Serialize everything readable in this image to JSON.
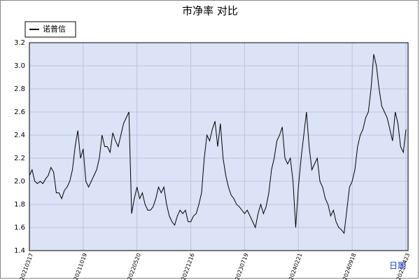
{
  "chart_data": {
    "type": "line",
    "title": "市净率  对比",
    "x_label": "日期",
    "categories": [
      "20210317",
      null,
      null,
      null,
      null,
      null,
      null,
      null,
      null,
      null,
      null,
      null,
      null,
      null,
      null,
      null,
      null,
      null,
      null,
      null,
      "20211019",
      null,
      null,
      null,
      null,
      null,
      null,
      null,
      null,
      null,
      null,
      null,
      null,
      null,
      null,
      null,
      null,
      null,
      null,
      null,
      "20220520",
      null,
      null,
      null,
      null,
      null,
      null,
      null,
      null,
      null,
      null,
      null,
      null,
      null,
      null,
      null,
      null,
      null,
      null,
      null,
      "20221216",
      null,
      null,
      null,
      null,
      null,
      null,
      null,
      null,
      null,
      null,
      null,
      null,
      null,
      null,
      null,
      null,
      null,
      null,
      null,
      "20230719",
      null,
      null,
      null,
      null,
      null,
      null,
      null,
      null,
      null,
      null,
      null,
      null,
      null,
      null,
      null,
      null,
      null,
      null,
      null,
      "20240221",
      null,
      null,
      null,
      null,
      null,
      null,
      null,
      null,
      null,
      null,
      null,
      null,
      null,
      null,
      null,
      null,
      null,
      null,
      null,
      "20240918",
      null,
      null,
      null,
      null,
      null,
      null,
      null,
      null,
      null,
      null,
      null,
      null,
      null,
      null,
      null,
      null,
      null,
      null,
      null,
      "20250423"
    ],
    "series": [
      {
        "name": "诺普信",
        "color": "#000000",
        "values": [
          2.05,
          2.1,
          2.0,
          1.98,
          2.0,
          1.98,
          2.02,
          2.05,
          2.12,
          2.08,
          1.9,
          1.9,
          1.85,
          1.92,
          1.95,
          2.0,
          2.1,
          2.3,
          2.44,
          2.2,
          2.28,
          2.0,
          1.95,
          2.0,
          2.05,
          2.1,
          2.2,
          2.4,
          2.3,
          2.3,
          2.25,
          2.42,
          2.35,
          2.3,
          2.4,
          2.5,
          2.55,
          2.6,
          1.72,
          1.85,
          1.95,
          1.85,
          1.9,
          1.8,
          1.75,
          1.75,
          1.78,
          1.85,
          1.95,
          1.9,
          1.95,
          1.8,
          1.7,
          1.65,
          1.62,
          1.7,
          1.75,
          1.72,
          1.75,
          1.65,
          1.65,
          1.7,
          1.72,
          1.8,
          1.9,
          2.2,
          2.4,
          2.35,
          2.45,
          2.52,
          2.3,
          2.5,
          2.2,
          2.05,
          1.95,
          1.88,
          1.85,
          1.8,
          1.78,
          1.75,
          1.72,
          1.75,
          1.7,
          1.65,
          1.6,
          1.72,
          1.8,
          1.72,
          1.78,
          1.9,
          2.1,
          2.2,
          2.35,
          2.4,
          2.47,
          2.2,
          2.15,
          2.2,
          2.0,
          1.6,
          1.95,
          2.2,
          2.4,
          2.6,
          2.3,
          2.1,
          2.15,
          2.2,
          2.0,
          1.95,
          1.85,
          1.8,
          1.7,
          1.75,
          1.65,
          1.6,
          1.58,
          1.55,
          1.75,
          1.95,
          2.0,
          2.1,
          2.3,
          2.4,
          2.45,
          2.55,
          2.6,
          2.8,
          3.1,
          3.0,
          2.8,
          2.65,
          2.6,
          2.55,
          2.45,
          2.35,
          2.6,
          2.5,
          2.3,
          2.25,
          2.45
        ]
      }
    ],
    "ylim": [
      1.4,
      3.2
    ],
    "yticks": [
      {
        "value": 1.4,
        "label": "1.4"
      },
      {
        "value": 1.6,
        "label": "1.6"
      },
      {
        "value": 1.8,
        "label": "1.8"
      },
      {
        "value": 2.0,
        "label": "2.0"
      },
      {
        "value": 2.2,
        "label": "2.2"
      },
      {
        "value": 2.4,
        "label": "2.4"
      },
      {
        "value": 2.6,
        "label": "2.6"
      },
      {
        "value": 2.8,
        "label": "2.8"
      },
      {
        "value": 3.0,
        "label": "3.0"
      },
      {
        "value": 3.2,
        "label": "3.2"
      }
    ],
    "grid": true,
    "legend": "top-left"
  }
}
